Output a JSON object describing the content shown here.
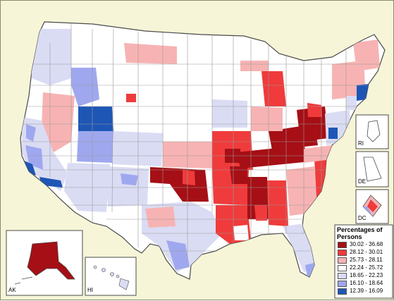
{
  "legend": {
    "title": "Percentages of Persons",
    "items": [
      {
        "label": "30.02 - 36.68",
        "color": "#A50F15"
      },
      {
        "label": "28.12 - 30.01",
        "color": "#EF3B3B"
      },
      {
        "label": "25.73 - 28.11",
        "color": "#F7B3B3"
      },
      {
        "label": "22.24 - 25.72",
        "color": "#FFFFFF"
      },
      {
        "label": "18.65 - 22.23",
        "color": "#DADCF4"
      },
      {
        "label": "16.10 - 18.64",
        "color": "#9FA8EE"
      },
      {
        "label": "12.39 - 16.09",
        "color": "#1E56B5"
      }
    ]
  },
  "insets": {
    "alaska": "AK",
    "hawaii": "HI",
    "rhode_island": "RI",
    "delaware": "DE",
    "dc": "DC"
  },
  "colors": {
    "background": "#F6F5D8",
    "border": "#4A4A4A",
    "substate_border": "#999999"
  }
}
